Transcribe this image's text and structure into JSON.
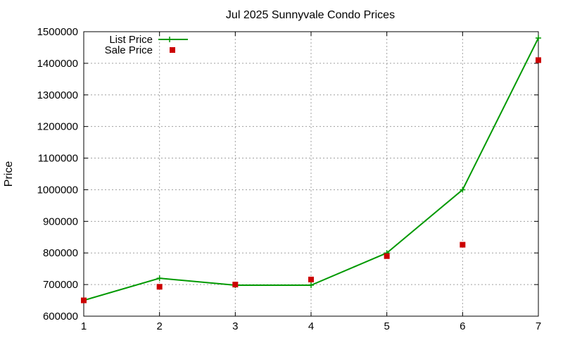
{
  "chart_data": {
    "type": "line",
    "title": "Jul 2025 Sunnyvale Condo Prices",
    "xlabel": "",
    "ylabel": "Price",
    "xlim": [
      1,
      7
    ],
    "ylim": [
      600000,
      1500000
    ],
    "x_ticks": [
      1,
      2,
      3,
      4,
      5,
      6,
      7
    ],
    "y_ticks": [
      600000,
      700000,
      800000,
      900000,
      1000000,
      1100000,
      1200000,
      1300000,
      1400000,
      1500000
    ],
    "grid": true,
    "legend_position": "top-left",
    "series": [
      {
        "name": "List Price",
        "style": "line-with-plus-markers",
        "color": "#009900",
        "x": [
          1,
          2,
          3,
          4,
          5,
          6,
          7
        ],
        "y": [
          650000,
          720000,
          698000,
          698000,
          800000,
          1000000,
          1480000
        ]
      },
      {
        "name": "Sale Price",
        "style": "square-points",
        "color": "#cc0000",
        "x": [
          1,
          2,
          3,
          4,
          5,
          6,
          7
        ],
        "y": [
          650000,
          693000,
          700000,
          716000,
          790000,
          826000,
          1410000
        ]
      }
    ]
  }
}
